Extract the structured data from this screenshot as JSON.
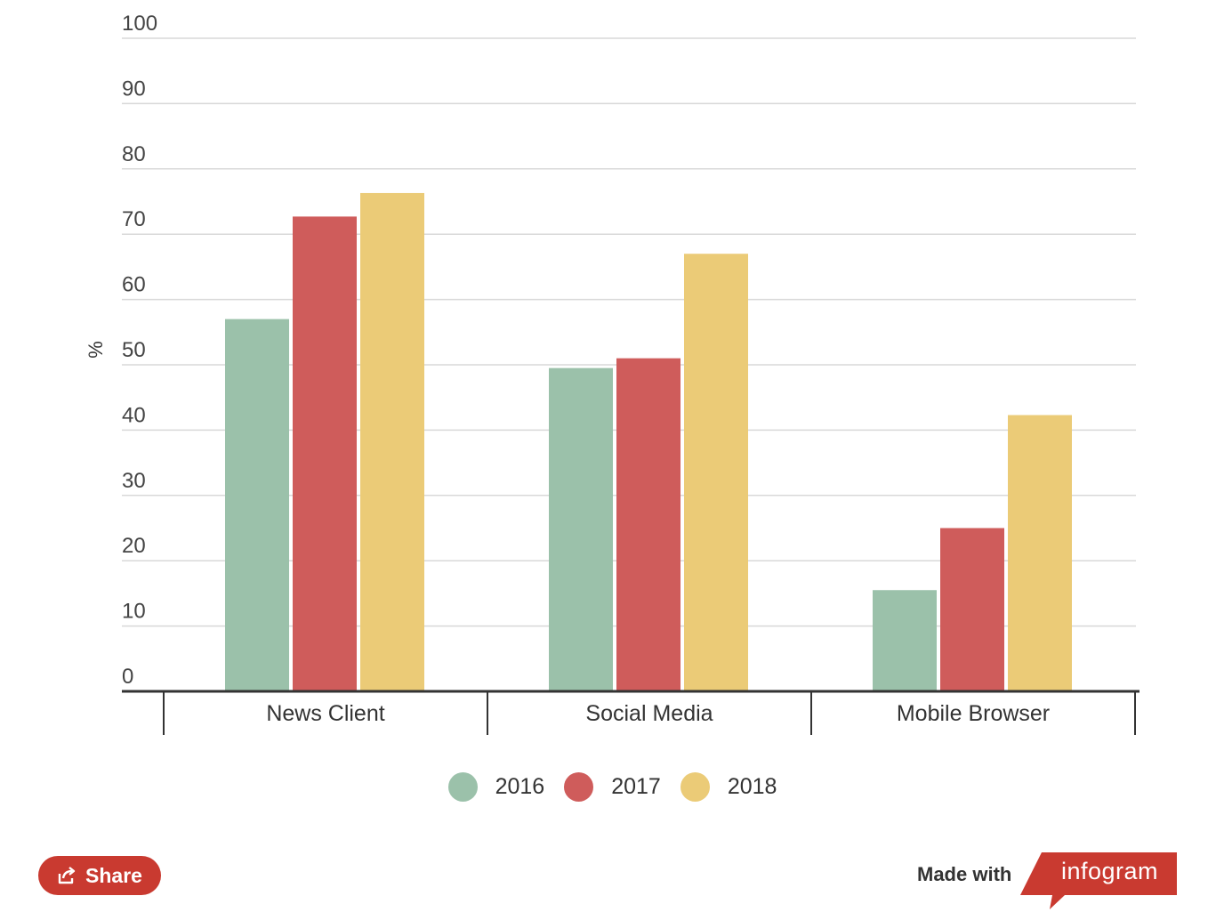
{
  "chart_data": {
    "type": "bar",
    "categories": [
      "News Client",
      "Social Media",
      "Mobile Browser"
    ],
    "series": [
      {
        "name": "2016",
        "values": [
          57,
          49.5,
          15.5
        ],
        "color": "#9bc1aa"
      },
      {
        "name": "2017",
        "values": [
          72.7,
          51,
          25
        ],
        "color": "#cf5c5b"
      },
      {
        "name": "2018",
        "values": [
          76.3,
          67,
          42.3
        ],
        "color": "#ebcb77"
      }
    ],
    "ylabel": "%",
    "ylim": [
      0,
      100
    ],
    "yticks": [
      0,
      10,
      20,
      30,
      40,
      50,
      60,
      70,
      80,
      90,
      100
    ],
    "grid": true,
    "legend_position": "bottom"
  },
  "footer": {
    "share_label": "Share",
    "made_with_label": "Made with",
    "brand_label": "infogram",
    "share_icon": "share-icon",
    "brand_color": "#c93a30"
  }
}
